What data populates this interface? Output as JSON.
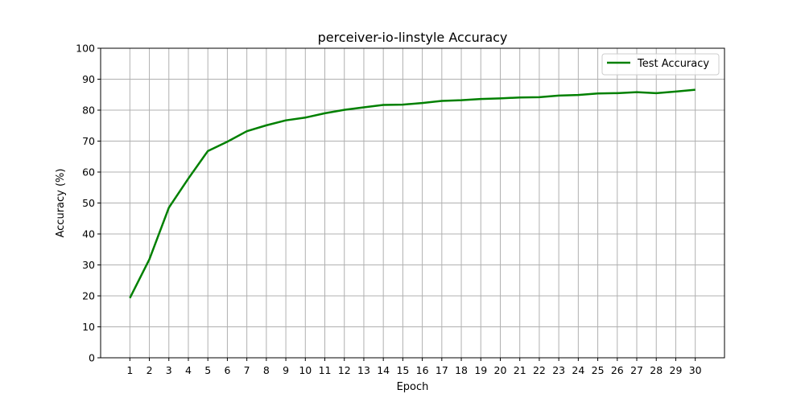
{
  "chart_data": {
    "type": "line",
    "title": "perceiver-io-linstyle Accuracy",
    "xlabel": "Epoch",
    "ylabel": "Accuracy (%)",
    "x": [
      1,
      2,
      3,
      4,
      5,
      6,
      7,
      8,
      9,
      10,
      11,
      12,
      13,
      14,
      15,
      16,
      17,
      18,
      19,
      20,
      21,
      22,
      23,
      24,
      25,
      26,
      27,
      28,
      29,
      30
    ],
    "xticks": [
      "1",
      "2",
      "3",
      "4",
      "5",
      "6",
      "7",
      "8",
      "9",
      "10",
      "11",
      "12",
      "13",
      "14",
      "15",
      "16",
      "17",
      "18",
      "19",
      "20",
      "21",
      "22",
      "23",
      "24",
      "25",
      "26",
      "27",
      "28",
      "29",
      "30"
    ],
    "xlim": [
      -0.5,
      31.5
    ],
    "ylim": [
      0,
      100
    ],
    "yticks": [
      "0",
      "10",
      "20",
      "30",
      "40",
      "50",
      "60",
      "70",
      "80",
      "90",
      "100"
    ],
    "grid": true,
    "legend_position": "top-right",
    "series": [
      {
        "name": "Test Accuracy",
        "color": "#008000",
        "values": [
          19.3,
          31.8,
          48.5,
          57.9,
          66.8,
          69.8,
          73.2,
          75.1,
          76.7,
          77.6,
          79.0,
          80.1,
          80.9,
          81.7,
          81.8,
          82.3,
          83.0,
          83.2,
          83.6,
          83.8,
          84.1,
          84.2,
          84.7,
          84.9,
          85.4,
          85.5,
          85.8,
          85.5,
          86.0,
          86.6
        ]
      }
    ]
  }
}
